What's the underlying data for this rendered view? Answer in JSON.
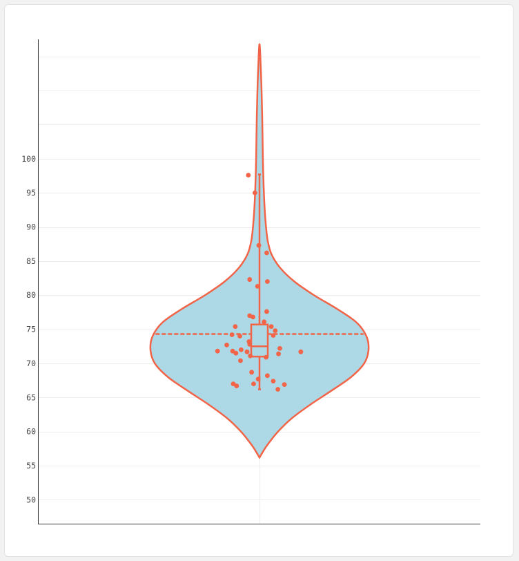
{
  "chart_data": {
    "type": "violin",
    "title": "",
    "xlabel": "",
    "ylabel": "",
    "ylim": [
      46.5,
      117.5
    ],
    "yticks": [
      50,
      55,
      60,
      65,
      70,
      75,
      80,
      85,
      90,
      95,
      100
    ],
    "ytick_labels": [
      "50",
      "55",
      "60",
      "65",
      "70",
      "75",
      "80",
      "85",
      "90",
      "95",
      "100"
    ],
    "grid": true,
    "colors": {
      "violin_fill": "#add8e6",
      "accent": "#f26447",
      "grid": "#ececec",
      "axis": "#333333"
    },
    "violin": {
      "min": 56.2,
      "max": 116.8,
      "density": [
        [
          56.2,
          0.0
        ],
        [
          57,
          0.03
        ],
        [
          58,
          0.07
        ],
        [
          60,
          0.17
        ],
        [
          62,
          0.3
        ],
        [
          64,
          0.47
        ],
        [
          66,
          0.66
        ],
        [
          68,
          0.84
        ],
        [
          70,
          0.96
        ],
        [
          72,
          1.0
        ],
        [
          74,
          0.98
        ],
        [
          76,
          0.89
        ],
        [
          78,
          0.71
        ],
        [
          80,
          0.5
        ],
        [
          82,
          0.32
        ],
        [
          84,
          0.19
        ],
        [
          86,
          0.11
        ],
        [
          88,
          0.075
        ],
        [
          90,
          0.06
        ],
        [
          92,
          0.05
        ],
        [
          94,
          0.043
        ],
        [
          96,
          0.038
        ],
        [
          98,
          0.034
        ],
        [
          100,
          0.031
        ],
        [
          102,
          0.029
        ],
        [
          104,
          0.027
        ],
        [
          106,
          0.025
        ],
        [
          108,
          0.022
        ],
        [
          110,
          0.019
        ],
        [
          112,
          0.015
        ],
        [
          114,
          0.01
        ],
        [
          116,
          0.005
        ],
        [
          116.8,
          0.0
        ]
      ]
    },
    "mean": 74.3,
    "box": {
      "q1": 71.0,
      "median": 72.5,
      "q3": 75.7,
      "whisker_low": 66.2,
      "whisker_high": 97.7
    },
    "points": [
      {
        "x": -0.17,
        "y": 97.6
      },
      {
        "x": -0.07,
        "y": 95.0
      },
      {
        "x": -0.01,
        "y": 87.3
      },
      {
        "x": 0.11,
        "y": 86.2
      },
      {
        "x": -0.15,
        "y": 82.3
      },
      {
        "x": -0.03,
        "y": 81.3
      },
      {
        "x": 0.12,
        "y": 82.0
      },
      {
        "x": 0.11,
        "y": 77.6
      },
      {
        "x": -0.15,
        "y": 77.0
      },
      {
        "x": -0.1,
        "y": 76.8
      },
      {
        "x": 0.07,
        "y": 76.1
      },
      {
        "x": 0.18,
        "y": 75.4
      },
      {
        "x": -0.37,
        "y": 75.4
      },
      {
        "x": 0.24,
        "y": 74.8
      },
      {
        "x": -0.42,
        "y": 74.2
      },
      {
        "x": 0.21,
        "y": 74.1
      },
      {
        "x": -0.3,
        "y": 74.0
      },
      {
        "x": -0.16,
        "y": 73.2
      },
      {
        "x": -0.15,
        "y": 72.8
      },
      {
        "x": -0.5,
        "y": 72.7
      },
      {
        "x": 0.31,
        "y": 72.2
      },
      {
        "x": -0.28,
        "y": 72.0
      },
      {
        "x": -0.41,
        "y": 71.8
      },
      {
        "x": -0.19,
        "y": 71.7
      },
      {
        "x": -0.64,
        "y": 71.8
      },
      {
        "x": -0.36,
        "y": 71.5
      },
      {
        "x": 0.29,
        "y": 71.4
      },
      {
        "x": 0.63,
        "y": 71.7
      },
      {
        "x": -0.14,
        "y": 71.1
      },
      {
        "x": 0.1,
        "y": 70.9
      },
      {
        "x": -0.29,
        "y": 70.4
      },
      {
        "x": -0.12,
        "y": 68.7
      },
      {
        "x": 0.12,
        "y": 68.2
      },
      {
        "x": -0.02,
        "y": 67.7
      },
      {
        "x": 0.21,
        "y": 67.4
      },
      {
        "x": -0.4,
        "y": 67.0
      },
      {
        "x": -0.09,
        "y": 67.0
      },
      {
        "x": 0.38,
        "y": 66.9
      },
      {
        "x": -0.35,
        "y": 66.7
      },
      {
        "x": 0.28,
        "y": 66.2
      }
    ]
  }
}
